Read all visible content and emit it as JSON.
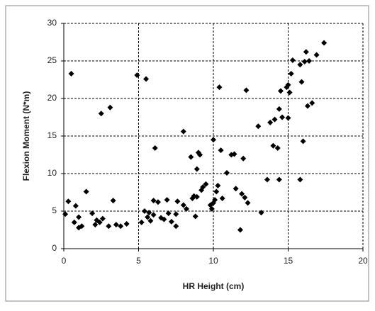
{
  "chart_data": {
    "type": "scatter",
    "x_label": "HR Height (cm)",
    "y_label": "Flexion Moment (N*m)",
    "x": [
      0.1,
      0.3,
      0.5,
      0.7,
      0.8,
      1.0,
      1.0,
      1.2,
      1.5,
      1.9,
      2.1,
      2.2,
      2.4,
      2.5,
      2.6,
      3.0,
      3.1,
      3.3,
      3.5,
      3.8,
      4.2,
      4.9,
      5.2,
      5.4,
      5.5,
      5.6,
      5.7,
      5.8,
      6.0,
      6.0,
      6.1,
      6.3,
      6.5,
      6.7,
      6.9,
      7.0,
      7.2,
      7.5,
      7.5,
      7.6,
      8.0,
      8.0,
      8.2,
      8.5,
      8.6,
      8.7,
      8.8,
      8.9,
      8.9,
      9.0,
      9.1,
      9.2,
      9.3,
      9.5,
      9.8,
      9.9,
      10.0,
      10.0,
      10.1,
      10.2,
      10.3,
      10.4,
      10.5,
      10.6,
      10.9,
      11.2,
      11.4,
      11.5,
      11.8,
      11.9,
      12.0,
      12.1,
      12.2,
      12.3,
      13.0,
      13.2,
      13.6,
      13.8,
      14.0,
      14.1,
      14.3,
      14.4,
      14.4,
      14.5,
      14.6,
      14.9,
      15.0,
      15.0,
      15.1,
      15.2,
      15.3,
      15.8,
      15.8,
      15.9,
      16.0,
      16.1,
      16.2,
      16.3,
      16.4,
      16.6,
      16.9,
      17.4
    ],
    "y": [
      4.6,
      6.3,
      23.3,
      3.5,
      5.7,
      4.2,
      2.8,
      3.0,
      7.6,
      4.7,
      3.2,
      3.8,
      3.5,
      18.0,
      4.0,
      3.0,
      18.8,
      6.4,
      3.2,
      3.0,
      3.3,
      23.1,
      3.5,
      5.0,
      22.6,
      4.2,
      4.8,
      3.7,
      4.5,
      6.4,
      13.4,
      6.2,
      4.1,
      3.9,
      6.5,
      4.7,
      3.6,
      3.0,
      4.6,
      6.3,
      15.6,
      5.8,
      5.3,
      12.2,
      6.7,
      7.0,
      4.3,
      10.6,
      6.9,
      12.8,
      12.5,
      7.8,
      8.2,
      8.6,
      5.8,
      5.3,
      14.5,
      6.1,
      6.5,
      7.6,
      8.4,
      21.5,
      13.1,
      6.7,
      10.1,
      12.5,
      12.6,
      8.0,
      2.5,
      7.3,
      12.0,
      6.8,
      21.1,
      6.1,
      16.3,
      4.8,
      9.2,
      16.8,
      13.7,
      17.2,
      13.4,
      18.6,
      9.2,
      21.0,
      17.5,
      21.5,
      17.4,
      21.8,
      20.8,
      23.3,
      25.1,
      9.2,
      24.5,
      22.2,
      14.3,
      24.9,
      26.2,
      19.0,
      25.0,
      19.4,
      25.8,
      27.4
    ],
    "color": "#000000",
    "xlim": [
      0,
      20
    ],
    "ylim": [
      0,
      30
    ],
    "xticks": [
      0,
      5,
      10,
      15,
      20
    ],
    "yticks": [
      0,
      5,
      10,
      15,
      20,
      25,
      30
    ],
    "grid": true
  }
}
